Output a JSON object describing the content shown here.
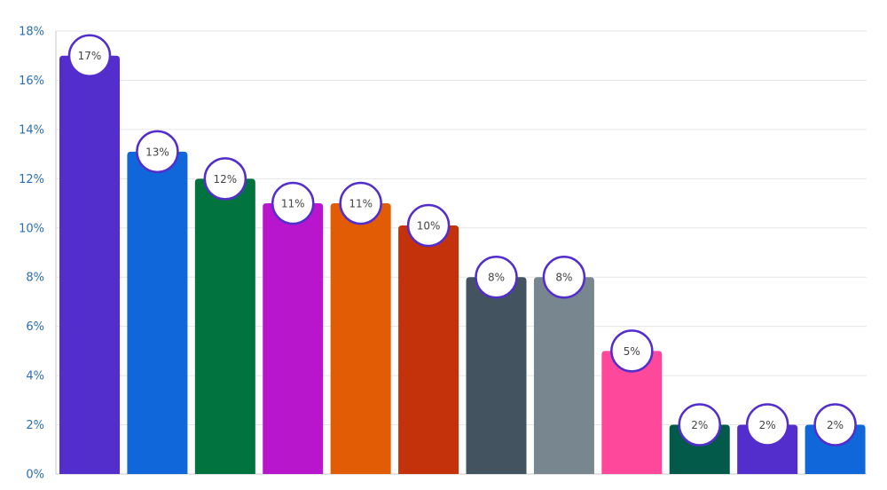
{
  "chart_data": {
    "type": "bar",
    "values": [
      17,
      13.1,
      12,
      11,
      11,
      10.1,
      8,
      8,
      5,
      2,
      2,
      2
    ],
    "data_labels": [
      "17%",
      "13%",
      "12%",
      "11%",
      "11%",
      "10%",
      "8%",
      "8%",
      "5%",
      "2%",
      "2%",
      "2%"
    ],
    "colors": [
      "#532ecd",
      "#0f67d9",
      "#00733f",
      "#b816cc",
      "#e25c05",
      "#c3320a",
      "#43535f",
      "#77868f",
      "#fd489b",
      "#03594a",
      "#532ecd",
      "#0f67d9"
    ],
    "label_ring_color": "#532ecd",
    "ylim": [
      0,
      18
    ],
    "yticks": [
      0,
      2,
      4,
      6,
      8,
      10,
      12,
      14,
      16,
      18
    ],
    "ytick_labels": [
      "0%",
      "2%",
      "4%",
      "6%",
      "8%",
      "10%",
      "12%",
      "14%",
      "16%",
      "18%"
    ],
    "grid": true,
    "legend": "none"
  }
}
